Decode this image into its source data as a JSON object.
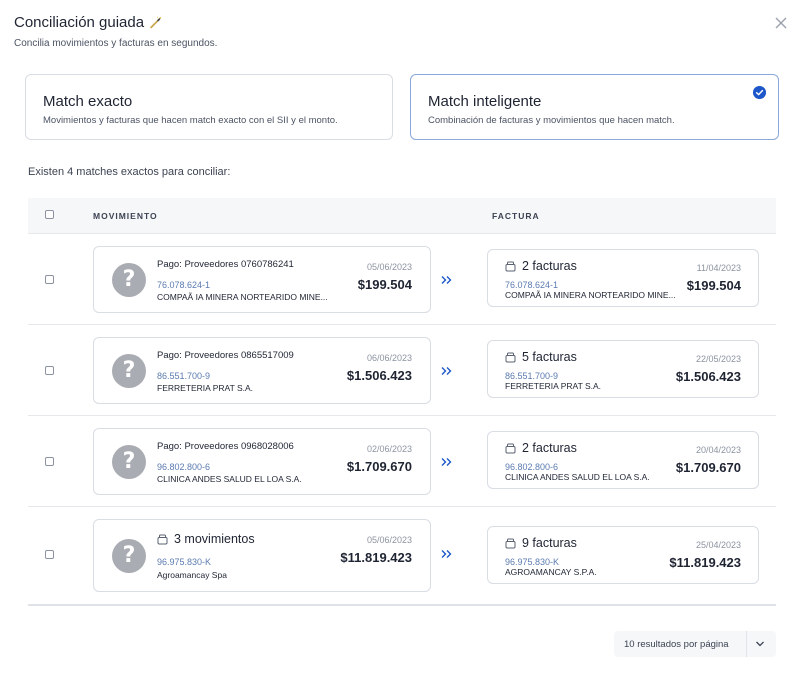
{
  "header": {
    "title": "Conciliación guiada",
    "subtitle": "Concilia movimientos y facturas en segundos."
  },
  "modes": {
    "exact": {
      "title": "Match exacto",
      "desc": "Movimientos y facturas que hacen match exacto con el SII y el monto."
    },
    "smart": {
      "title": "Match inteligente",
      "desc": "Combinación de facturas y movimientos que hacen match.",
      "selected": true
    }
  },
  "summary": "Existen 4 matches exactos para conciliar:",
  "table": {
    "col_movimiento": "MOVIMIENTO",
    "col_factura": "FACTURA",
    "rows": [
      {
        "mov": {
          "title": "Pago: Proveedores 0760786241",
          "rut": "76.078.624-1",
          "business": "COMPAÃ   IA MINERA NORTEARIDO MINE...",
          "date": "05/06/2023",
          "amount": "$199.504"
        },
        "fac": {
          "title": "2 facturas",
          "rut": "76.078.624-1",
          "business": "COMPAÃ   IA MINERA NORTEARIDO MINE...",
          "date": "11/04/2023",
          "amount": "$199.504"
        }
      },
      {
        "mov": {
          "title": "Pago: Proveedores 0865517009",
          "rut": "86.551.700-9",
          "business": "FERRETERIA PRAT S.A.",
          "date": "06/06/2023",
          "amount": "$1.506.423"
        },
        "fac": {
          "title": "5 facturas",
          "rut": "86.551.700-9",
          "business": "FERRETERIA PRAT S.A.",
          "date": "22/05/2023",
          "amount": "$1.506.423"
        }
      },
      {
        "mov": {
          "title": "Pago: Proveedores 0968028006",
          "rut": "96.802.800-6",
          "business": "CLINICA ANDES SALUD EL LOA S.A.",
          "date": "02/06/2023",
          "amount": "$1.709.670"
        },
        "fac": {
          "title": "2 facturas",
          "rut": "96.802.800-6",
          "business": "CLINICA ANDES SALUD EL LOA S.A.",
          "date": "20/04/2023",
          "amount": "$1.709.670"
        }
      },
      {
        "mov": {
          "title": "3 movimientos",
          "rut": "96.975.830-K",
          "business": "Agroamancay Spa",
          "date": "05/06/2023",
          "amount": "$11.819.423"
        },
        "fac": {
          "title": "9 facturas",
          "rut": "96.975.830-K",
          "business": "AGROAMANCAY S.P.A.",
          "date": "25/04/2023",
          "amount": "$11.819.423"
        }
      }
    ]
  },
  "avatar_glyph": "?",
  "pagination": {
    "label": "10 resultados por página"
  },
  "icons": {
    "close": "close-icon",
    "wand": "magic-wand-icon",
    "check": "check-circle-icon",
    "stack": "invoice-stack-icon",
    "arrows": "double-chevron-right-icon",
    "dropdown": "chevron-down-icon"
  },
  "colors": {
    "accent": "#1e57c9",
    "rut": "#5b7bb0",
    "avatar": "#a9acb2"
  }
}
